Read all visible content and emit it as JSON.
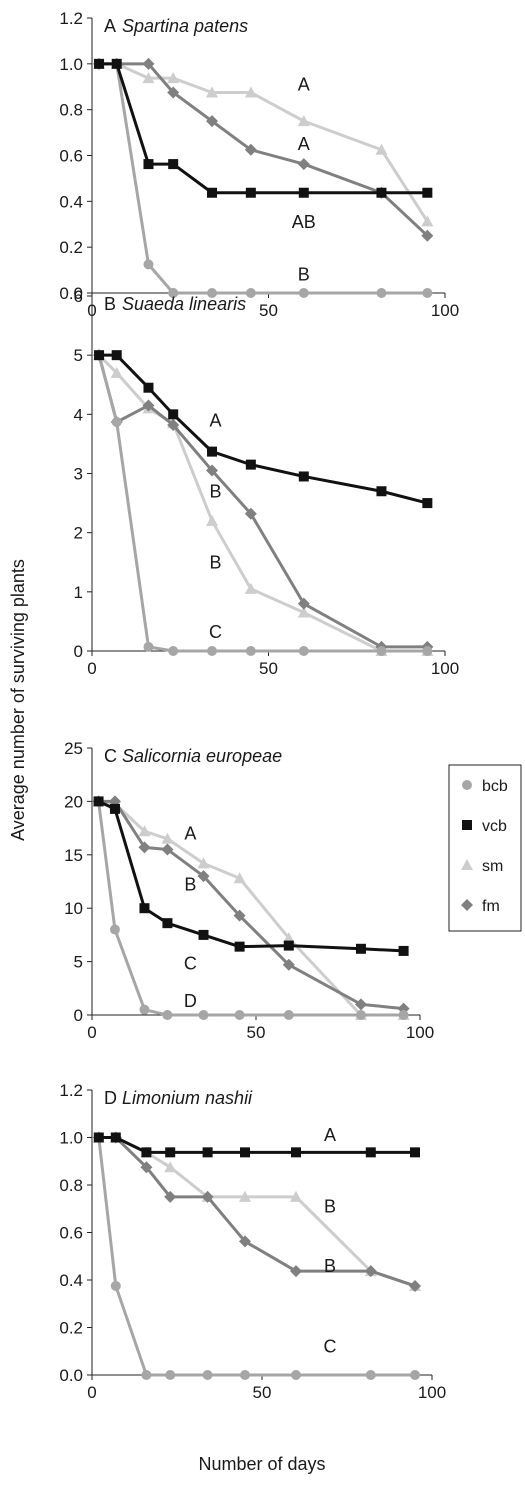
{
  "figure": {
    "ylabel": "Average number of surviving plants",
    "xlabel": "Number of days"
  },
  "legend": {
    "items": [
      {
        "key": "bcb",
        "label": "bcb",
        "marker": "circle",
        "color": "#a6a6a6"
      },
      {
        "key": "vcb",
        "label": "vcb",
        "marker": "square",
        "color": "#111111"
      },
      {
        "key": "sm",
        "label": "sm",
        "marker": "triangle",
        "color": "#cdcdcd"
      },
      {
        "key": "fm",
        "label": "fm",
        "marker": "diamond",
        "color": "#808080"
      }
    ]
  },
  "chart_data": [
    {
      "type": "line",
      "panel": "A",
      "title": "Spartina patens",
      "xlim": [
        0,
        100
      ],
      "xticks": [
        0,
        50,
        100
      ],
      "ylim": [
        0,
        1.2
      ],
      "yticks": [
        "0.0",
        "0.2",
        "0.4",
        "0.6",
        "0.8",
        "1.0",
        "1.2"
      ],
      "series": [
        {
          "key": "bcb",
          "x": [
            2,
            7,
            16,
            23
          ],
          "y": [
            1.0,
            1.0,
            0.125,
            0.0
          ]
        },
        {
          "key": "vcb",
          "x": [
            2,
            7,
            16,
            23,
            34,
            45,
            60,
            82,
            95
          ],
          "y": [
            1.0,
            1.0,
            0.5625,
            0.5625,
            0.4375,
            0.4375,
            0.4375,
            0.4375,
            0.4375
          ]
        },
        {
          "key": "sm",
          "x": [
            2,
            7,
            16,
            23,
            34,
            45,
            60,
            82,
            95
          ],
          "y": [
            1.0,
            1.0,
            0.9375,
            0.9375,
            0.875,
            0.875,
            0.75,
            0.625,
            0.3125
          ]
        },
        {
          "key": "fm",
          "x": [
            2,
            7,
            16,
            23,
            34,
            45,
            60,
            82,
            95
          ],
          "y": [
            1.0,
            1.0,
            1.0,
            0.875,
            0.75,
            0.625,
            0.5625,
            0.4375,
            0.25
          ]
        },
        {
          "key": "bcb_tail",
          "x": [
            23,
            34,
            45,
            60,
            82,
            95
          ],
          "y": [
            0.0,
            0.0,
            0.0,
            0.0,
            0.0,
            0.0
          ]
        }
      ],
      "annotations": [
        {
          "text": "A",
          "x": 60,
          "y": 0.91
        },
        {
          "text": "A",
          "x": 60,
          "y": 0.65
        },
        {
          "text": "AB",
          "x": 60,
          "y": 0.31
        },
        {
          "text": "B",
          "x": 60,
          "y": 0.08
        }
      ]
    },
    {
      "type": "line",
      "panel": "B",
      "title": "Suaeda linearis",
      "xlim": [
        0,
        100
      ],
      "xticks": [
        0,
        50,
        100
      ],
      "ylim": [
        0,
        6
      ],
      "yticks": [
        "0",
        "1",
        "2",
        "3",
        "4",
        "5",
        "6"
      ],
      "series": [
        {
          "key": "bcb",
          "x": [
            2,
            7,
            16,
            23,
            34,
            45,
            60,
            82,
            95
          ],
          "y": [
            5.0,
            3.87,
            0.07,
            0.0,
            0.0,
            0.0,
            0.0,
            0.0,
            0.0
          ]
        },
        {
          "key": "vcb",
          "x": [
            2,
            7,
            16,
            23,
            34,
            45,
            60,
            82,
            95
          ],
          "y": [
            5.0,
            5.0,
            4.45,
            4.0,
            3.37,
            3.15,
            2.95,
            2.7,
            2.5
          ]
        },
        {
          "key": "sm",
          "x": [
            2,
            7,
            16,
            23,
            34,
            45,
            60,
            82,
            95
          ],
          "y": [
            5.0,
            4.7,
            4.1,
            3.85,
            2.2,
            1.05,
            0.65,
            0.0,
            0.0
          ]
        },
        {
          "key": "fm",
          "x": [
            2,
            7,
            16,
            23,
            34,
            45,
            60,
            82,
            95
          ],
          "y": [
            5.0,
            3.87,
            4.15,
            3.82,
            3.05,
            2.32,
            0.8,
            0.07,
            0.07
          ]
        }
      ],
      "annotations": [
        {
          "text": "A",
          "x": 35,
          "y": 3.9
        },
        {
          "text": "B",
          "x": 35,
          "y": 2.7
        },
        {
          "text": "B",
          "x": 35,
          "y": 1.5
        },
        {
          "text": "C",
          "x": 35,
          "y": 0.32
        }
      ]
    },
    {
      "type": "line",
      "panel": "C",
      "title": "Salicornia europeae",
      "xlim": [
        0,
        100
      ],
      "xticks": [
        0,
        50,
        100
      ],
      "ylim": [
        0,
        25
      ],
      "yticks": [
        "0",
        "5",
        "10",
        "15",
        "20",
        "25"
      ],
      "series": [
        {
          "key": "bcb",
          "x": [
            2,
            7,
            16,
            23,
            34,
            45,
            60,
            82,
            95
          ],
          "y": [
            20.0,
            8.0,
            0.5,
            0.0,
            0.0,
            0.0,
            0.0,
            0.0,
            0.0
          ]
        },
        {
          "key": "vcb",
          "x": [
            2,
            7,
            16,
            23,
            34,
            45,
            60,
            82,
            95
          ],
          "y": [
            20.0,
            19.3,
            10.0,
            8.6,
            7.5,
            6.4,
            6.5,
            6.2,
            6.0
          ]
        },
        {
          "key": "sm",
          "x": [
            2,
            7,
            16,
            23,
            34,
            45,
            60,
            82,
            95
          ],
          "y": [
            20.0,
            19.8,
            17.2,
            16.5,
            14.2,
            12.8,
            7.2,
            0.0,
            0.0
          ]
        },
        {
          "key": "fm",
          "x": [
            2,
            7,
            16,
            23,
            34,
            45,
            60,
            82,
            95
          ],
          "y": [
            20.0,
            20.0,
            15.7,
            15.5,
            13.0,
            9.3,
            4.7,
            1.0,
            0.6
          ]
        }
      ],
      "annotations": [
        {
          "text": "A",
          "x": 30,
          "y": 17.0
        },
        {
          "text": "B",
          "x": 30,
          "y": 12.2
        },
        {
          "text": "C",
          "x": 30,
          "y": 4.8
        },
        {
          "text": "D",
          "x": 30,
          "y": 1.3
        }
      ]
    },
    {
      "type": "line",
      "panel": "D",
      "title": "Limonium nashii",
      "xlim": [
        0,
        100
      ],
      "xticks": [
        0,
        50,
        100
      ],
      "ylim": [
        0,
        1.2
      ],
      "yticks": [
        "0.0",
        "0.2",
        "0.4",
        "0.6",
        "0.8",
        "1.0",
        "1.2"
      ],
      "series": [
        {
          "key": "bcb",
          "x": [
            2,
            7,
            16,
            23,
            34,
            45,
            60,
            82,
            95
          ],
          "y": [
            1.0,
            0.375,
            0.0,
            0.0,
            0.0,
            0.0,
            0.0,
            0.0,
            0.0
          ]
        },
        {
          "key": "vcb",
          "x": [
            2,
            7,
            16,
            23,
            34,
            45,
            60,
            82,
            95
          ],
          "y": [
            1.0,
            1.0,
            0.9375,
            0.9375,
            0.9375,
            0.9375,
            0.9375,
            0.9375,
            0.9375
          ]
        },
        {
          "key": "sm",
          "x": [
            2,
            7,
            16,
            23,
            34,
            45,
            60,
            82,
            95
          ],
          "y": [
            1.0,
            1.0,
            0.9375,
            0.875,
            0.75,
            0.75,
            0.75,
            0.4375,
            0.375
          ]
        },
        {
          "key": "fm",
          "x": [
            2,
            7,
            16,
            23,
            34,
            45,
            60,
            82,
            95
          ],
          "y": [
            1.0,
            1.0,
            0.875,
            0.75,
            0.75,
            0.5625,
            0.4375,
            0.4375,
            0.375
          ]
        }
      ],
      "annotations": [
        {
          "text": "A",
          "x": 70,
          "y": 1.01
        },
        {
          "text": "B",
          "x": 70,
          "y": 0.71
        },
        {
          "text": "B",
          "x": 70,
          "y": 0.46
        },
        {
          "text": "C",
          "x": 70,
          "y": 0.12
        }
      ]
    }
  ]
}
